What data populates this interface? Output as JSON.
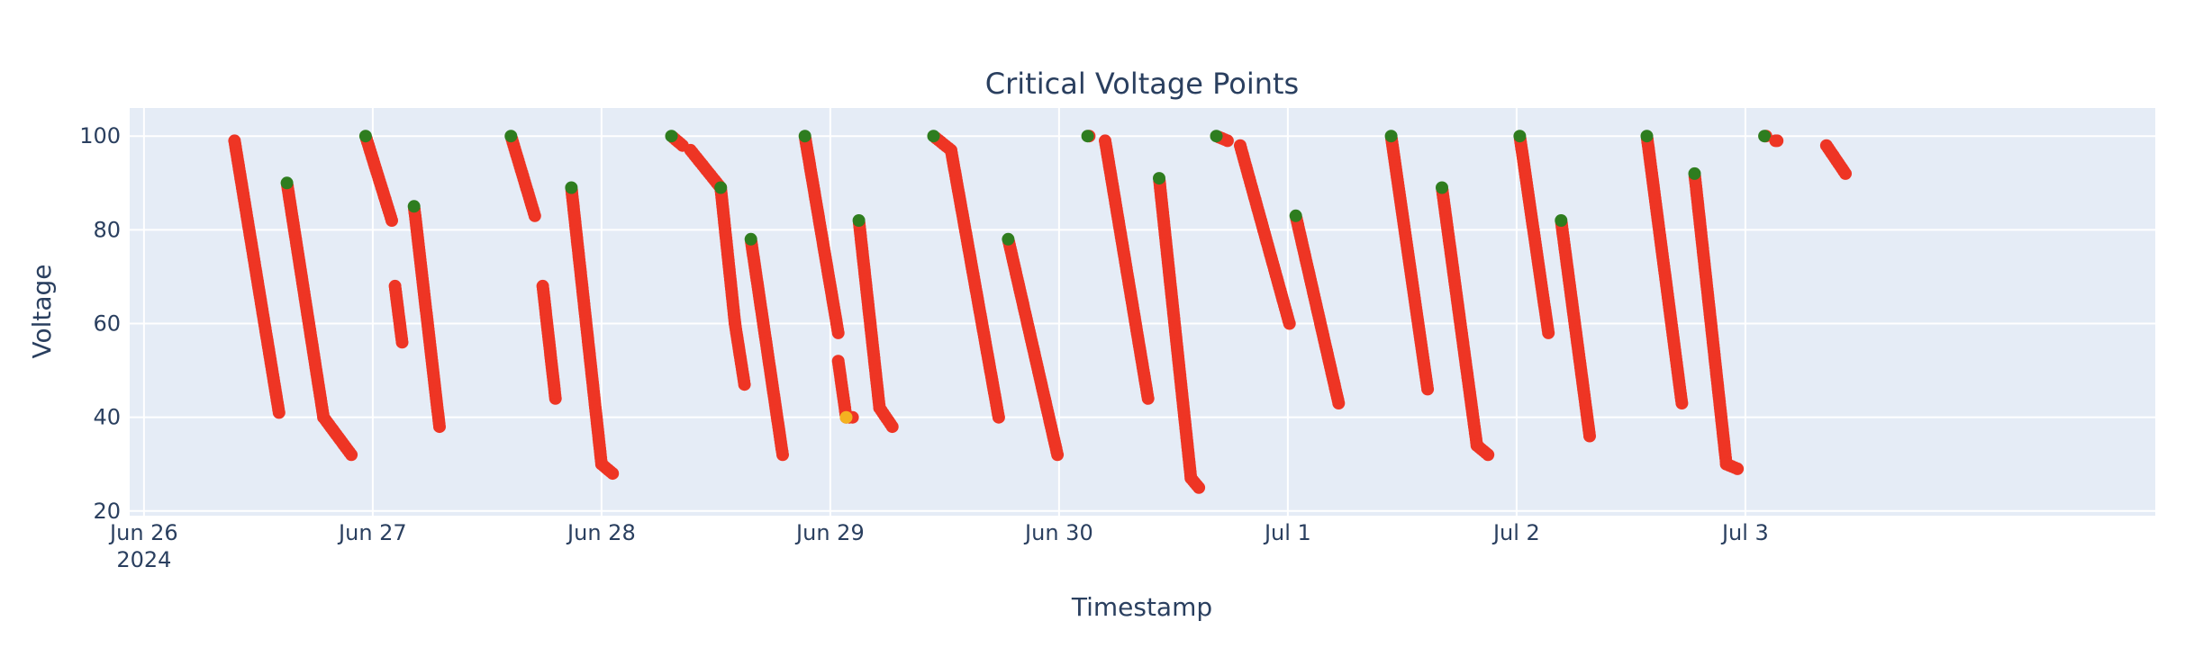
{
  "chart_data": {
    "type": "scatter",
    "title": "Critical Voltage Points",
    "xlabel": "Timestamp",
    "ylabel": "Voltage",
    "x_axis_type": "date",
    "xlim": [
      "2024-06-25T22:30",
      "2024-07-04T19:00"
    ],
    "ylim": [
      19,
      106
    ],
    "x_ticks": [
      {
        "value": "2024-06-26T00:00",
        "label": "Jun 26",
        "sublabel": "2024"
      },
      {
        "value": "2024-06-27T00:00",
        "label": "Jun 27"
      },
      {
        "value": "2024-06-28T00:00",
        "label": "Jun 28"
      },
      {
        "value": "2024-06-29T00:00",
        "label": "Jun 29"
      },
      {
        "value": "2024-06-30T00:00",
        "label": "Jun 30"
      },
      {
        "value": "2024-07-01T00:00",
        "label": "Jul 1"
      },
      {
        "value": "2024-07-02T00:00",
        "label": "Jul 2"
      },
      {
        "value": "2024-07-03T00:00",
        "label": "Jul 3"
      }
    ],
    "y_ticks": [
      20,
      40,
      60,
      80,
      100
    ],
    "grid": true,
    "legend": "none",
    "colors": {
      "critical": "#ee3524",
      "full": "#2e7d1f",
      "transition": "#f4b120",
      "plot_bg": "#e5ecf6",
      "text": "#2a3f5f"
    },
    "segments": [
      {
        "start": [
          "2024-06-26T09:30",
          99
        ],
        "end": [
          "2024-06-26T14:10",
          41
        ],
        "start_color": "#ee3524"
      },
      {
        "start": [
          "2024-06-26T15:00",
          90
        ],
        "end": [
          "2024-06-26T18:50",
          40
        ],
        "start_color": "#2e7d1f"
      },
      {
        "start": [
          "2024-06-26T18:50",
          40
        ],
        "end": [
          "2024-06-26T21:45",
          32
        ],
        "start_color": "#ee3524"
      },
      {
        "start": [
          "2024-06-26T23:15",
          100
        ],
        "end": [
          "2024-06-27T02:00",
          82
        ],
        "start_color": "#2e7d1f"
      },
      {
        "start": [
          "2024-06-27T02:20",
          68
        ],
        "end": [
          "2024-06-27T03:05",
          56
        ],
        "start_color": "#ee3524"
      },
      {
        "start": [
          "2024-06-27T04:20",
          85
        ],
        "end": [
          "2024-06-27T07:00",
          38
        ],
        "start_color": "#2e7d1f"
      },
      {
        "start": [
          "2024-06-27T14:30",
          100
        ],
        "end": [
          "2024-06-27T17:00",
          83
        ],
        "start_color": "#2e7d1f"
      },
      {
        "start": [
          "2024-06-27T17:50",
          68
        ],
        "end": [
          "2024-06-27T19:10",
          44
        ],
        "start_color": "#ee3524"
      },
      {
        "start": [
          "2024-06-27T20:50",
          89
        ],
        "end": [
          "2024-06-28T00:00",
          30
        ],
        "start_color": "#2e7d1f"
      },
      {
        "start": [
          "2024-06-28T00:00",
          30
        ],
        "end": [
          "2024-06-28T01:10",
          28
        ],
        "start_color": "#ee3524"
      },
      {
        "start": [
          "2024-06-28T07:20",
          100
        ],
        "end": [
          "2024-06-28T08:30",
          98
        ],
        "start_color": "#2e7d1f"
      },
      {
        "start": [
          "2024-06-28T09:20",
          97
        ],
        "end": [
          "2024-06-28T12:30",
          89
        ],
        "start_color": "#ee3524"
      },
      {
        "start": [
          "2024-06-28T12:30",
          89
        ],
        "end": [
          "2024-06-28T14:00",
          60
        ],
        "start_color": "#2e7d1f"
      },
      {
        "start": [
          "2024-06-28T14:00",
          60
        ],
        "end": [
          "2024-06-28T15:00",
          47
        ],
        "start_color": "#ee3524"
      },
      {
        "start": [
          "2024-06-28T15:40",
          78
        ],
        "end": [
          "2024-06-28T19:00",
          32
        ],
        "start_color": "#2e7d1f"
      },
      {
        "start": [
          "2024-06-28T21:20",
          100
        ],
        "end": [
          "2024-06-29T00:50",
          58
        ],
        "start_color": "#2e7d1f"
      },
      {
        "start": [
          "2024-06-29T00:50",
          52
        ],
        "end": [
          "2024-06-29T01:40",
          40
        ],
        "start_color": "#ee3524"
      },
      {
        "start": [
          "2024-06-29T01:40",
          40
        ],
        "end": [
          "2024-06-29T02:20",
          40
        ],
        "start_color": "#f4b120"
      },
      {
        "start": [
          "2024-06-29T03:00",
          82
        ],
        "end": [
          "2024-06-29T05:10",
          42
        ],
        "start_color": "#2e7d1f"
      },
      {
        "start": [
          "2024-06-29T05:10",
          42
        ],
        "end": [
          "2024-06-29T06:30",
          38
        ],
        "start_color": "#ee3524"
      },
      {
        "start": [
          "2024-06-29T10:50",
          100
        ],
        "end": [
          "2024-06-29T12:40",
          97
        ],
        "start_color": "#2e7d1f"
      },
      {
        "start": [
          "2024-06-29T12:40",
          97
        ],
        "end": [
          "2024-06-29T17:40",
          40
        ],
        "start_color": "#ee3524"
      },
      {
        "start": [
          "2024-06-29T18:40",
          78
        ],
        "end": [
          "2024-06-29T23:50",
          32
        ],
        "start_color": "#2e7d1f"
      },
      {
        "start": [
          "2024-06-30T03:00",
          100
        ],
        "end": [
          "2024-06-30T03:10",
          100
        ],
        "start_color": "#2e7d1f"
      },
      {
        "start": [
          "2024-06-30T04:50",
          99
        ],
        "end": [
          "2024-06-30T09:20",
          44
        ],
        "start_color": "#ee3524"
      },
      {
        "start": [
          "2024-06-30T10:30",
          91
        ],
        "end": [
          "2024-06-30T13:50",
          27
        ],
        "start_color": "#2e7d1f"
      },
      {
        "start": [
          "2024-06-30T13:50",
          27
        ],
        "end": [
          "2024-06-30T14:40",
          25
        ],
        "start_color": "#ee3524"
      },
      {
        "start": [
          "2024-06-30T16:30",
          100
        ],
        "end": [
          "2024-06-30T17:40",
          99
        ],
        "start_color": "#2e7d1f"
      },
      {
        "start": [
          "2024-06-30T19:00",
          98
        ],
        "end": [
          "2024-07-01T00:10",
          60
        ],
        "start_color": "#ee3524"
      },
      {
        "start": [
          "2024-07-01T00:50",
          83
        ],
        "end": [
          "2024-07-01T05:20",
          43
        ],
        "start_color": "#2e7d1f"
      },
      {
        "start": [
          "2024-07-01T10:50",
          100
        ],
        "end": [
          "2024-07-01T14:40",
          46
        ],
        "start_color": "#2e7d1f"
      },
      {
        "start": [
          "2024-07-01T16:10",
          89
        ],
        "end": [
          "2024-07-01T19:50",
          34
        ],
        "start_color": "#2e7d1f"
      },
      {
        "start": [
          "2024-07-01T19:50",
          34
        ],
        "end": [
          "2024-07-01T21:00",
          32
        ],
        "start_color": "#ee3524"
      },
      {
        "start": [
          "2024-07-02T00:20",
          100
        ],
        "end": [
          "2024-07-02T03:20",
          58
        ],
        "start_color": "#2e7d1f"
      },
      {
        "start": [
          "2024-07-02T04:40",
          82
        ],
        "end": [
          "2024-07-02T07:40",
          36
        ],
        "start_color": "#2e7d1f"
      },
      {
        "start": [
          "2024-07-02T13:40",
          100
        ],
        "end": [
          "2024-07-02T17:20",
          43
        ],
        "start_color": "#2e7d1f"
      },
      {
        "start": [
          "2024-07-02T18:40",
          92
        ],
        "end": [
          "2024-07-02T22:00",
          30
        ],
        "start_color": "#2e7d1f"
      },
      {
        "start": [
          "2024-07-02T22:00",
          30
        ],
        "end": [
          "2024-07-02T23:10",
          29
        ],
        "start_color": "#ee3524"
      },
      {
        "start": [
          "2024-07-03T02:00",
          100
        ],
        "end": [
          "2024-07-03T02:10",
          100
        ],
        "start_color": "#2e7d1f"
      },
      {
        "start": [
          "2024-07-03T03:10",
          99
        ],
        "end": [
          "2024-07-03T03:20",
          99
        ],
        "start_color": "#ee3524"
      },
      {
        "start": [
          "2024-07-03T08:30",
          98
        ],
        "end": [
          "2024-07-03T10:30",
          92
        ],
        "start_color": "#ee3524"
      }
    ]
  }
}
